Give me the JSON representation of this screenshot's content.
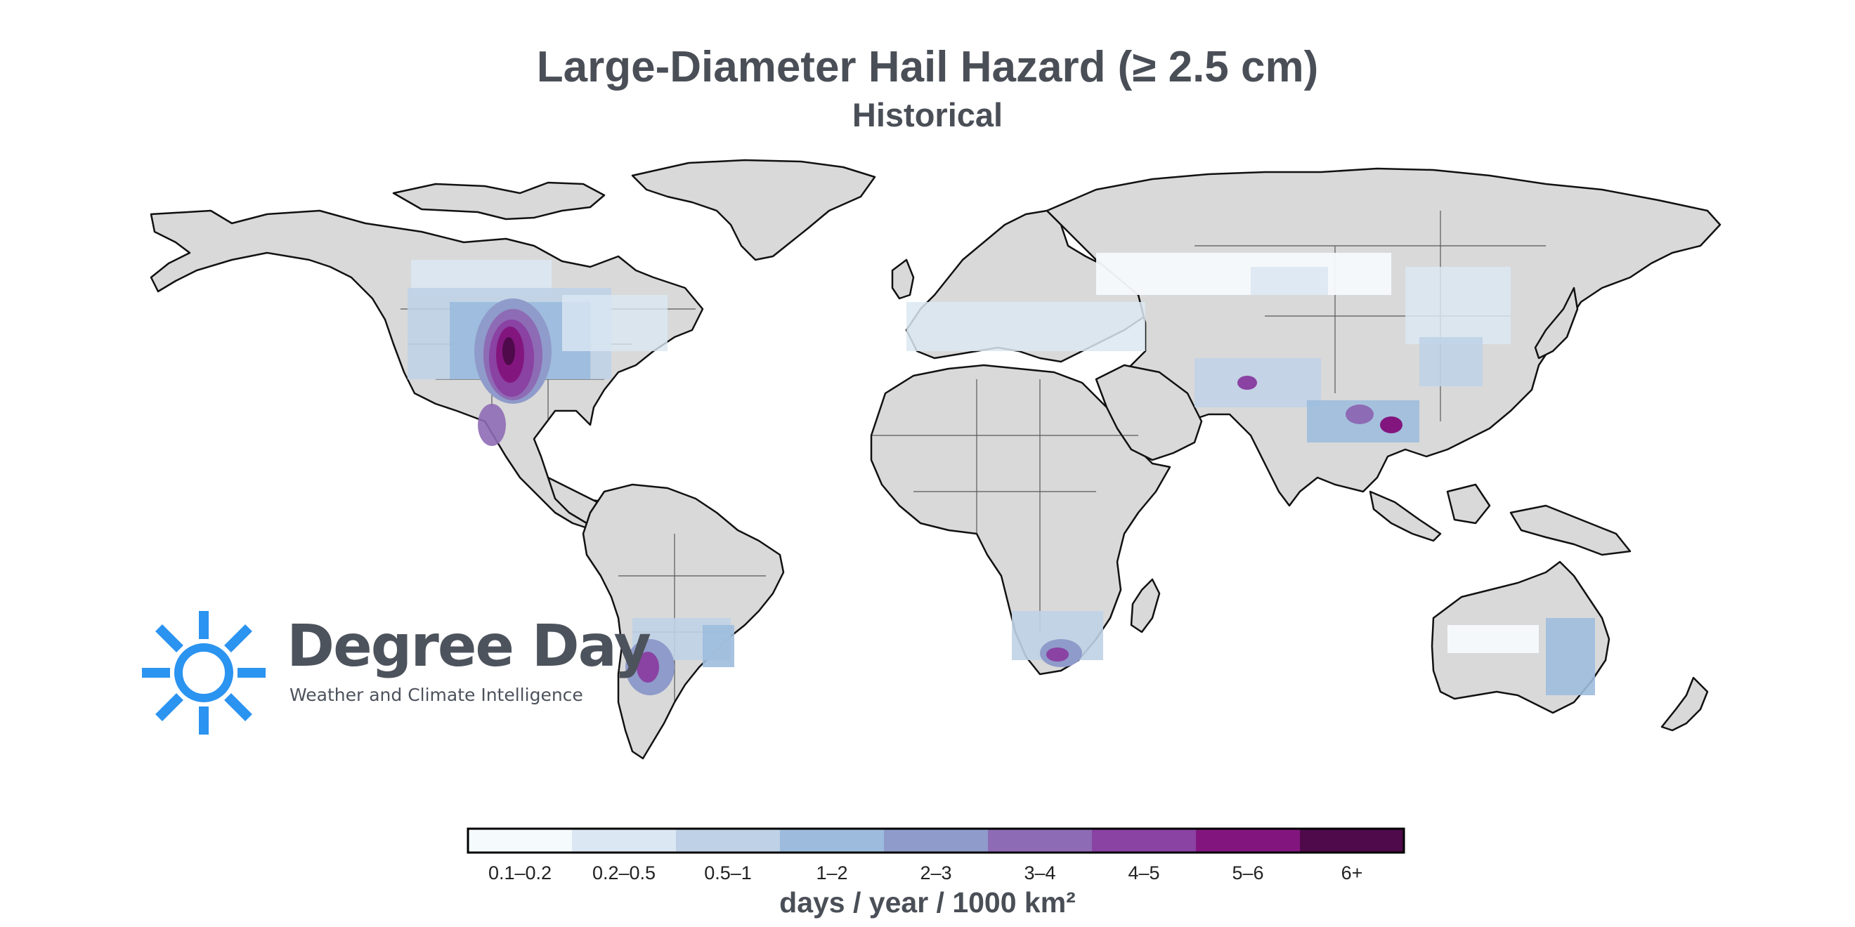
{
  "title": "Large-Diameter Hail Hazard (≥ 2.5 cm)",
  "subtitle": "Historical",
  "logo": {
    "name": "Degree Day",
    "tagline": "Weather and Climate Intelligence",
    "color": "#2b93f0"
  },
  "legend": {
    "unit": "days / year / 1000 km²",
    "bins": [
      {
        "label": "0.1–0.2",
        "color": "#f5fafc"
      },
      {
        "label": "0.2–0.5",
        "color": "#dbe7f2"
      },
      {
        "label": "0.5–1",
        "color": "#bfd1e6"
      },
      {
        "label": "1–2",
        "color": "#9dbcdd"
      },
      {
        "label": "2–3",
        "color": "#8f9bca"
      },
      {
        "label": "3–4",
        "color": "#8e6bb5"
      },
      {
        "label": "4–5",
        "color": "#8a42a3"
      },
      {
        "label": "5–6",
        "color": "#83167e"
      },
      {
        "label": "6+",
        "color": "#4e0a4a"
      }
    ]
  },
  "map": {
    "land_color": "#d9d9d9",
    "ocean_color": "#ffffff",
    "border_color": "#111111"
  }
}
